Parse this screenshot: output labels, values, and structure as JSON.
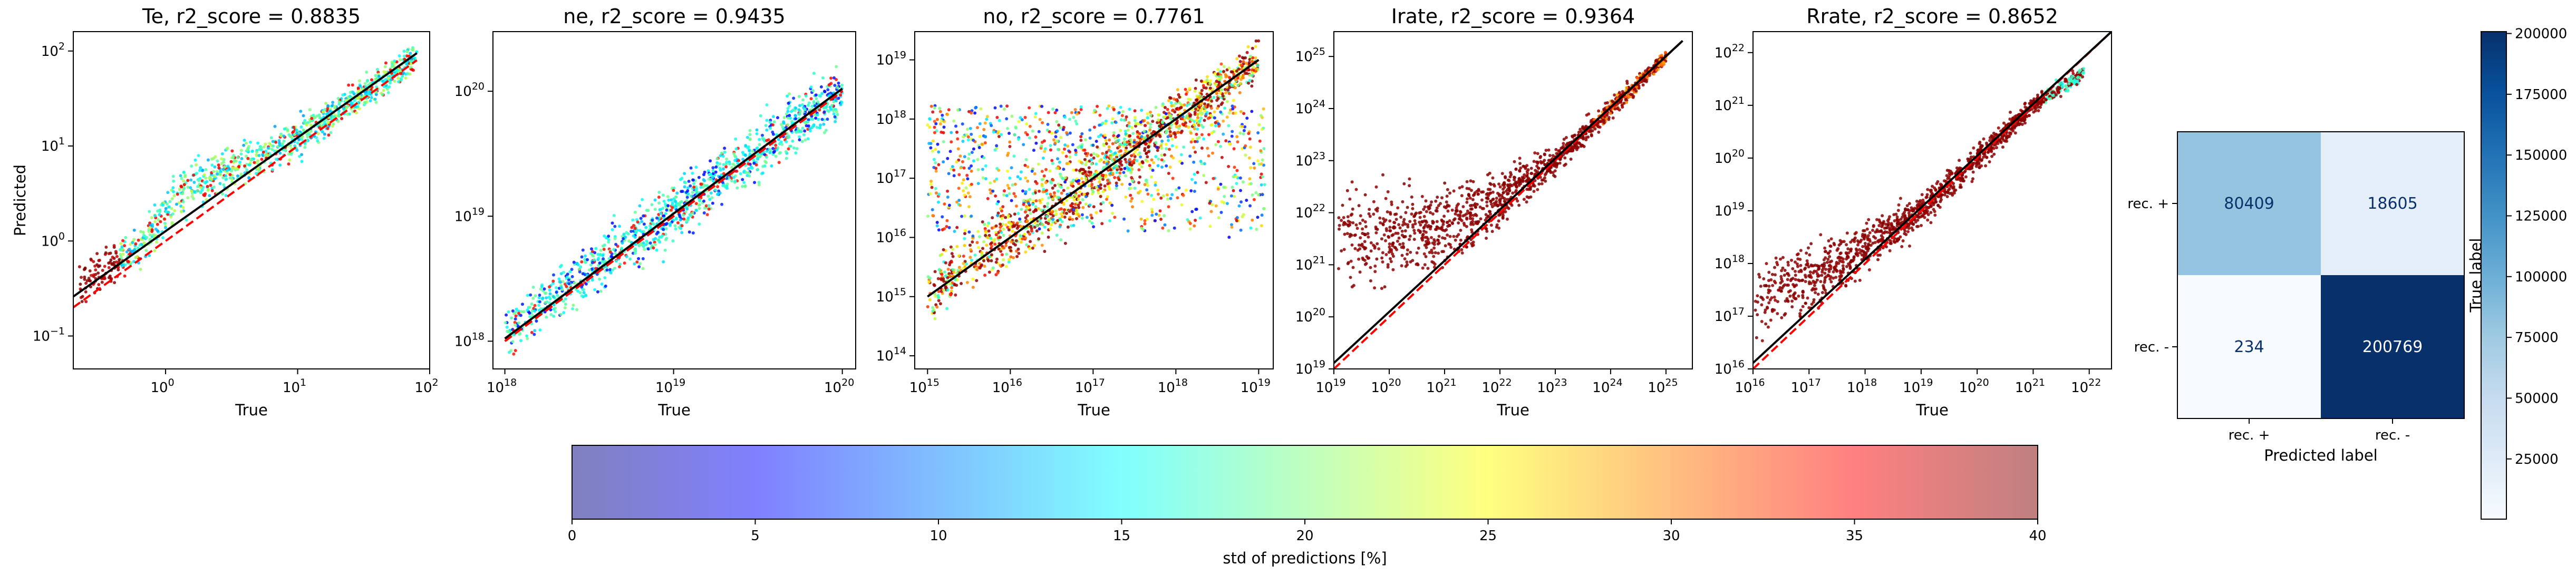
{
  "chart_data": [
    {
      "type": "scatter",
      "title": "Te, r2_score = 0.8835",
      "xlabel": "True",
      "ylabel": "Predicted",
      "xscale": "log",
      "yscale": "log",
      "xlim": [
        0.2,
        100
      ],
      "ylim": [
        0.045,
        160
      ],
      "xticks": [
        {
          "v": 1,
          "b": "10",
          "e": "0"
        },
        {
          "v": 10,
          "b": "10",
          "e": "1"
        },
        {
          "v": 100,
          "b": "10",
          "e": "2"
        }
      ],
      "yticks": [
        {
          "v": 0.1,
          "b": "10",
          "e": "−1"
        },
        {
          "v": 1,
          "b": "10",
          "e": "0"
        },
        {
          "v": 10,
          "b": "10",
          "e": "1"
        },
        {
          "v": 100,
          "b": "10",
          "e": "2"
        }
      ],
      "lines": [
        {
          "name": "identity",
          "color": "#ff0000",
          "dash": true,
          "points": [
            [
              0.2,
              0.2
            ],
            [
              80,
              80
            ]
          ]
        },
        {
          "name": "fit",
          "color": "#000000",
          "dash": false,
          "points": [
            [
              0.2,
              0.26
            ],
            [
              80,
              95
            ]
          ]
        }
      ],
      "band_center": [
        [
          0.22,
          0.36
        ],
        [
          0.6,
          0.8
        ],
        [
          1.3,
          3.2
        ],
        [
          3,
          5.5
        ],
        [
          10,
          12
        ],
        [
          30,
          35
        ],
        [
          80,
          85
        ]
      ],
      "band_width_decades": [
        0.2,
        0.2,
        0.26,
        0.22,
        0.18,
        0.16,
        0.14
      ],
      "points_per_panel": 1100,
      "std_pattern": "low_high_x_mostly_blue_green",
      "grid": false
    },
    {
      "type": "scatter",
      "title": "ne, r2_score = 0.9435",
      "xlabel": "True",
      "ylabel": "",
      "xscale": "log",
      "yscale": "log",
      "xlim": [
        8.5e+17,
        1.2e+20
      ],
      "ylim": [
        6e+17,
        3e+20
      ],
      "xticks": [
        {
          "v": 1e+18,
          "b": "10",
          "e": "18"
        },
        {
          "v": 1e+19,
          "b": "10",
          "e": "19"
        },
        {
          "v": 1e+20,
          "b": "10",
          "e": "20"
        }
      ],
      "yticks": [
        {
          "v": 1e+18,
          "b": "10",
          "e": "18"
        },
        {
          "v": 1e+19,
          "b": "10",
          "e": "19"
        },
        {
          "v": 1e+20,
          "b": "10",
          "e": "20"
        }
      ],
      "lines": [
        {
          "name": "identity",
          "color": "#ff0000",
          "dash": true,
          "points": [
            [
              1e+18,
              1e+18
            ],
            [
              1e+20,
              1e+20
            ]
          ]
        },
        {
          "name": "fit",
          "color": "#000000",
          "dash": false,
          "points": [
            [
              1e+18,
              1.05e+18
            ],
            [
              1e+20,
              1.05e+20
            ]
          ]
        }
      ],
      "band_center": [
        [
          1e+18,
          1.2e+18
        ],
        [
          1e+19,
          1.1e+19
        ],
        [
          1e+20,
          1e+20
        ]
      ],
      "band_width_decades": [
        0.2,
        0.22,
        0.2
      ],
      "points_per_panel": 1200,
      "std_pattern": "mostly_cyan_green_with_blue_core",
      "grid": false
    },
    {
      "type": "scatter",
      "title": "no, r2_score = 0.7761",
      "xlabel": "True",
      "ylabel": "",
      "xscale": "log",
      "yscale": "log",
      "xlim": [
        700000000000000.0,
        1.5e+19
      ],
      "ylim": [
        60000000000000.0,
        3e+19
      ],
      "xticks": [
        {
          "v": 1000000000000000.0,
          "b": "10",
          "e": "15"
        },
        {
          "v": 1e+16,
          "b": "10",
          "e": "16"
        },
        {
          "v": 1e+17,
          "b": "10",
          "e": "17"
        },
        {
          "v": 1e+18,
          "b": "10",
          "e": "18"
        },
        {
          "v": 1e+19,
          "b": "10",
          "e": "19"
        }
      ],
      "yticks": [
        {
          "v": 100000000000000.0,
          "b": "10",
          "e": "14"
        },
        {
          "v": 1000000000000000.0,
          "b": "10",
          "e": "15"
        },
        {
          "v": 1e+16,
          "b": "10",
          "e": "16"
        },
        {
          "v": 1e+17,
          "b": "10",
          "e": "17"
        },
        {
          "v": 1e+18,
          "b": "10",
          "e": "18"
        },
        {
          "v": 1e+19,
          "b": "10",
          "e": "19"
        }
      ],
      "lines": [
        {
          "name": "identity",
          "color": "#ff0000",
          "dash": true,
          "points": [
            [
              1000000000000000.0,
              1000000000000000.0
            ],
            [
              1e+19,
              1e+19
            ]
          ]
        },
        {
          "name": "fit",
          "color": "#000000",
          "dash": false,
          "points": [
            [
              1000000000000000.0,
              1000000000000000.0
            ],
            [
              1e+19,
              1e+19
            ]
          ]
        }
      ],
      "band_center": [
        [
          1000000000000000.0,
          1200000000000000.0
        ],
        [
          1e+17,
          1e+17
        ],
        [
          1e+19,
          1e+19
        ]
      ],
      "band_width_decades": [
        0.5,
        0.55,
        0.3
      ],
      "extra_cloud": {
        "x_range": [
          1000000000000000.0,
          1.2e+19
        ],
        "y_range": [
          1e+16,
          1.7e+18
        ],
        "points": 900
      },
      "points_per_panel": 1300,
      "std_pattern": "wide_spread_multicolor_red_bottom",
      "grid": false
    },
    {
      "type": "scatter",
      "title": "Irate, r2_score = 0.9364",
      "xlabel": "True",
      "ylabel": "",
      "xscale": "log",
      "yscale": "log",
      "xlim": [
        1e+19,
        3e+25
      ],
      "ylim": [
        1e+19,
        3e+25
      ],
      "xticks": [
        {
          "v": 1e+19,
          "b": "10",
          "e": "19"
        },
        {
          "v": 1e+20,
          "b": "10",
          "e": "20"
        },
        {
          "v": 1e+21,
          "b": "10",
          "e": "21"
        },
        {
          "v": 1e+22,
          "b": "10",
          "e": "22"
        },
        {
          "v": 1e+23,
          "b": "10",
          "e": "23"
        },
        {
          "v": 1e+24,
          "b": "10",
          "e": "24"
        },
        {
          "v": 1e+25,
          "b": "10",
          "e": "25"
        }
      ],
      "yticks": [
        {
          "v": 1e+19,
          "b": "10",
          "e": "19"
        },
        {
          "v": 1e+20,
          "b": "10",
          "e": "20"
        },
        {
          "v": 1e+21,
          "b": "10",
          "e": "21"
        },
        {
          "v": 1e+22,
          "b": "10",
          "e": "22"
        },
        {
          "v": 1e+23,
          "b": "10",
          "e": "23"
        },
        {
          "v": 1e+24,
          "b": "10",
          "e": "24"
        },
        {
          "v": 1e+25,
          "b": "10",
          "e": "25"
        }
      ],
      "lines": [
        {
          "name": "identity",
          "color": "#ff0000",
          "dash": true,
          "points": [
            [
              1e+19,
              1e+19
            ],
            [
              2e+25,
              2e+25
            ]
          ]
        },
        {
          "name": "fit",
          "color": "#000000",
          "dash": false,
          "points": [
            [
              1e+19,
              1.3e+19
            ],
            [
              2e+25,
              2e+25
            ]
          ]
        }
      ],
      "band_center": [
        [
          1.2e+19,
          3e+21
        ],
        [
          1e+21,
          5e+21
        ],
        [
          1e+22,
          2e+22
        ],
        [
          1e+23,
          1e+23
        ],
        [
          1e+25,
          1e+25
        ]
      ],
      "band_width_decades": [
        0.9,
        0.75,
        0.5,
        0.25,
        0.12
      ],
      "points_per_panel": 1300,
      "std_pattern": "mostly_dark_red_some_yellow_upper",
      "grid": false
    },
    {
      "type": "scatter",
      "title": "Rrate, r2_score = 0.8652",
      "xlabel": "True",
      "ylabel": "",
      "xscale": "log",
      "yscale": "log",
      "xlim": [
        1e+16,
        2.5e+22
      ],
      "ylim": [
        1e+16,
        2.5e+22
      ],
      "xticks": [
        {
          "v": 1e+16,
          "b": "10",
          "e": "16"
        },
        {
          "v": 1e+17,
          "b": "10",
          "e": "17"
        },
        {
          "v": 1e+18,
          "b": "10",
          "e": "18"
        },
        {
          "v": 1e+19,
          "b": "10",
          "e": "19"
        },
        {
          "v": 1e+20,
          "b": "10",
          "e": "20"
        },
        {
          "v": 1e+21,
          "b": "10",
          "e": "21"
        },
        {
          "v": 1e+22,
          "b": "10",
          "e": "22"
        }
      ],
      "yticks": [
        {
          "v": 1e+16,
          "b": "10",
          "e": "16"
        },
        {
          "v": 1e+17,
          "b": "10",
          "e": "17"
        },
        {
          "v": 1e+18,
          "b": "10",
          "e": "18"
        },
        {
          "v": 1e+19,
          "b": "10",
          "e": "19"
        },
        {
          "v": 1e+20,
          "b": "10",
          "e": "20"
        },
        {
          "v": 1e+21,
          "b": "10",
          "e": "21"
        },
        {
          "v": 1e+22,
          "b": "10",
          "e": "22"
        }
      ],
      "lines": [
        {
          "name": "identity",
          "color": "#ff0000",
          "dash": true,
          "points": [
            [
              1e+16,
              1e+16
            ],
            [
              2.5e+22,
              2.5e+22
            ]
          ]
        },
        {
          "name": "fit",
          "color": "#000000",
          "dash": false,
          "points": [
            [
              1e+16,
              1.3e+16
            ],
            [
              2.5e+22,
              2.5e+22
            ]
          ]
        }
      ],
      "band_center": [
        [
          1.1e+16,
          2e+17
        ],
        [
          1e+17,
          5e+17
        ],
        [
          1e+18,
          2e+18
        ],
        [
          1e+19,
          1e+19
        ],
        [
          1e+21,
          1e+21
        ],
        [
          8e+21,
          4e+21
        ]
      ],
      "band_width_decades": [
        0.7,
        0.6,
        0.45,
        0.3,
        0.15,
        0.12
      ],
      "points_per_panel": 1300,
      "std_pattern": "mostly_dark_red_cyan_upper_tip",
      "grid": false
    },
    {
      "type": "heatmap",
      "subtype": "confusion_matrix",
      "xlabel": "Predicted label",
      "ylabel": "True label",
      "x_categories": [
        "rec. +",
        "rec. -"
      ],
      "y_categories": [
        "rec. +",
        "rec. -"
      ],
      "values": [
        [
          80409,
          18605
        ],
        [
          234,
          200769
        ]
      ],
      "vmin": 234,
      "vmax": 200769,
      "colormap": "Blues",
      "colorbar_ticks": [
        25000,
        50000,
        75000,
        100000,
        125000,
        150000,
        175000,
        200000
      ]
    },
    {
      "type": "colorbar",
      "label": "std of predictions [%]",
      "range": [
        0,
        40
      ],
      "ticks": [
        0,
        5,
        10,
        15,
        20,
        25,
        30,
        35,
        40
      ],
      "colormap": "jet",
      "alpha": 0.5
    }
  ],
  "colors": {
    "jet_stops": [
      "#00007f",
      "#0000ff",
      "#007fff",
      "#00ffff",
      "#7fff7f",
      "#ffff00",
      "#ff7f00",
      "#ff0000",
      "#7f0000"
    ],
    "blues_stops": [
      "#f7fbff",
      "#deebf7",
      "#c6dbef",
      "#9ecae1",
      "#6baed6",
      "#4292c6",
      "#2171b5",
      "#08519c",
      "#08306b"
    ],
    "identity_line": "#ff0000",
    "fit_line": "#000000",
    "cm_text_light": "#ffffff",
    "cm_text_dark": "#08306b"
  }
}
